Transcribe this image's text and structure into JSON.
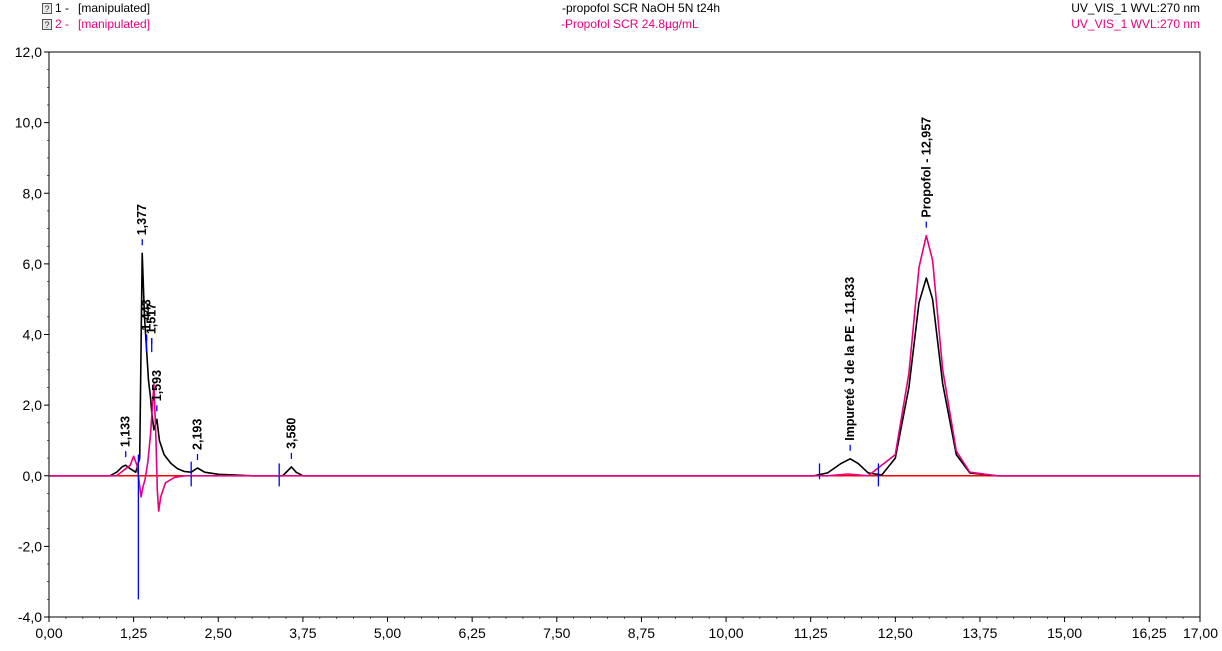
{
  "header": {
    "rows": [
      {
        "index_label": "1 -",
        "status": "[manipulated]",
        "title": "-propofol SCR NaOH 5N t24h",
        "detector": "UV_VIS_1 WVL:270 nm",
        "color": "#000000"
      },
      {
        "index_label": "2 -",
        "status": "[manipulated]",
        "title": "-Propofol SCR 24.8µg/mL",
        "detector": "UV_VIS_1 WVL:270 nm",
        "color": "#e6007e"
      }
    ],
    "icon": "help-icon"
  },
  "chart_data": {
    "type": "line",
    "xlim": [
      0,
      17
    ],
    "ylim": [
      -4,
      12
    ],
    "x_ticks": [
      "0,00",
      "1,25",
      "2,50",
      "3,75",
      "5,00",
      "6,25",
      "7,50",
      "8,75",
      "10,00",
      "11,25",
      "12,50",
      "13,75",
      "15,00",
      "16,25",
      "17,00"
    ],
    "y_ticks": [
      "-4,0",
      "-2,0",
      "0,0",
      "2,0",
      "4,0",
      "6,0",
      "8,0",
      "10,0",
      "12,0"
    ],
    "grid": false,
    "series": [
      {
        "name": "-propofol SCR NaOH 5N t24h",
        "color": "#000000",
        "points": [
          [
            0,
            0
          ],
          [
            0.9,
            0.0
          ],
          [
            1.0,
            0.1
          ],
          [
            1.08,
            0.25
          ],
          [
            1.13,
            0.3
          ],
          [
            1.2,
            0.2
          ],
          [
            1.28,
            0.1
          ],
          [
            1.34,
            0.5
          ],
          [
            1.377,
            6.3
          ],
          [
            1.41,
            4.5
          ],
          [
            1.44,
            3.6
          ],
          [
            1.47,
            2.7
          ],
          [
            1.5,
            2.2
          ],
          [
            1.517,
            1.8
          ],
          [
            1.55,
            1.3
          ],
          [
            1.593,
            1.6
          ],
          [
            1.63,
            1.0
          ],
          [
            1.7,
            0.6
          ],
          [
            1.8,
            0.35
          ],
          [
            1.9,
            0.2
          ],
          [
            2.0,
            0.12
          ],
          [
            2.1,
            0.1
          ],
          [
            2.193,
            0.22
          ],
          [
            2.3,
            0.1
          ],
          [
            2.5,
            0.04
          ],
          [
            3.0,
            0.0
          ],
          [
            3.45,
            0.0
          ],
          [
            3.53,
            0.15
          ],
          [
            3.58,
            0.25
          ],
          [
            3.65,
            0.1
          ],
          [
            3.75,
            0.0
          ],
          [
            11.3,
            0.0
          ],
          [
            11.5,
            0.08
          ],
          [
            11.7,
            0.35
          ],
          [
            11.833,
            0.48
          ],
          [
            11.95,
            0.35
          ],
          [
            12.1,
            0.08
          ],
          [
            12.3,
            0.02
          ],
          [
            12.5,
            0.5
          ],
          [
            12.7,
            2.5
          ],
          [
            12.85,
            4.9
          ],
          [
            12.957,
            5.6
          ],
          [
            13.05,
            5.0
          ],
          [
            13.2,
            2.6
          ],
          [
            13.4,
            0.6
          ],
          [
            13.6,
            0.08
          ],
          [
            14.0,
            0.0
          ],
          [
            17,
            0
          ]
        ]
      },
      {
        "name": "-Propofol SCR 24.8µg/mL",
        "color": "#e6007e",
        "points": [
          [
            0,
            0
          ],
          [
            1.0,
            0.0
          ],
          [
            1.2,
            0.3
          ],
          [
            1.25,
            0.55
          ],
          [
            1.3,
            0.3
          ],
          [
            1.36,
            -0.6
          ],
          [
            1.39,
            -0.3
          ],
          [
            1.42,
            -0.1
          ],
          [
            1.46,
            0.4
          ],
          [
            1.5,
            1.2
          ],
          [
            1.55,
            2.6
          ],
          [
            1.58,
            1.0
          ],
          [
            1.6,
            -0.4
          ],
          [
            1.62,
            -1.0
          ],
          [
            1.65,
            -0.6
          ],
          [
            1.72,
            -0.2
          ],
          [
            1.85,
            -0.05
          ],
          [
            2.0,
            0.0
          ],
          [
            11.5,
            0.0
          ],
          [
            11.8,
            0.05
          ],
          [
            12.1,
            0.0
          ],
          [
            12.5,
            0.6
          ],
          [
            12.7,
            2.9
          ],
          [
            12.85,
            5.9
          ],
          [
            12.957,
            6.8
          ],
          [
            13.05,
            6.1
          ],
          [
            13.2,
            3.0
          ],
          [
            13.4,
            0.7
          ],
          [
            13.6,
            0.1
          ],
          [
            14.0,
            0.0
          ],
          [
            17,
            0
          ]
        ]
      }
    ],
    "peaks": [
      {
        "label": "1,133",
        "x": 1.133,
        "y": 0.3
      },
      {
        "label": "1,377",
        "x": 1.377,
        "y": 6.3
      },
      {
        "label": "1,443",
        "x": 1.443,
        "y": 3.6
      },
      {
        "label": "1,517",
        "x": 1.517,
        "y": 3.5
      },
      {
        "label": "1,593",
        "x": 1.593,
        "y": 1.6
      },
      {
        "label": "2,193",
        "x": 2.193,
        "y": 0.22
      },
      {
        "label": "3,580",
        "x": 3.58,
        "y": 0.25
      },
      {
        "label": "Impureté J de la PE - 11,833",
        "x": 11.833,
        "y": 0.48
      },
      {
        "label": "Propofol - 12,957",
        "x": 12.957,
        "y": 6.8
      }
    ],
    "baseline_color": "#ff0000",
    "integration_marker_color": "#0000ff"
  }
}
